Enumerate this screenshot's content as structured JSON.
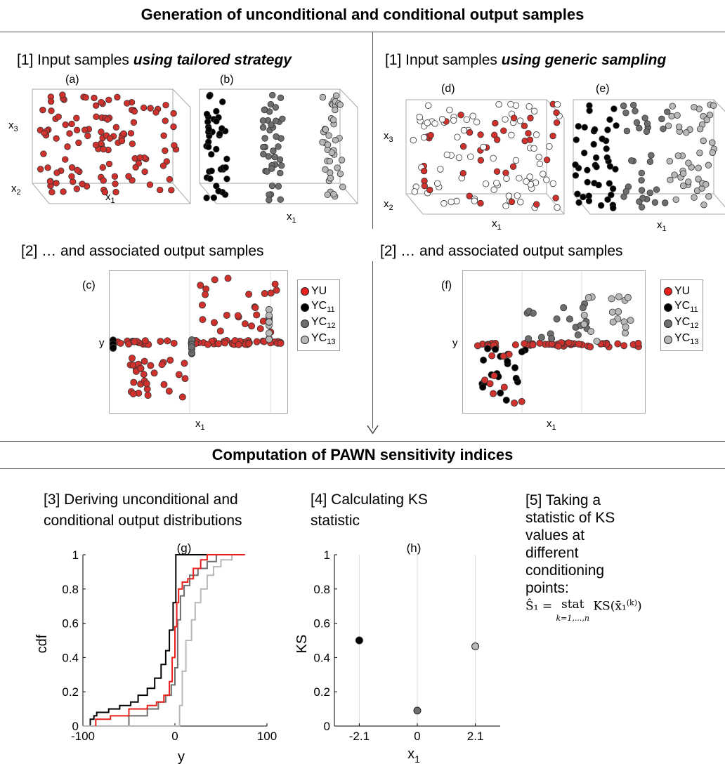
{
  "section1": {
    "title": "Generation of unconditional and conditional output samples"
  },
  "section2": {
    "title": "Computation of PAWN sensitivity indices"
  },
  "left": {
    "step1_prefix": "[1] Input samples ",
    "step1_emph": "using tailored strategy",
    "step2": "[2] … and associated output samples",
    "panel_a": "(a)",
    "panel_b": "(b)",
    "panel_c": "(c)"
  },
  "right": {
    "step1_prefix": "[1] Input samples ",
    "step1_emph": "using generic sampling",
    "step2": "[2] … and associated output samples",
    "panel_d": "(d)",
    "panel_e": "(e)",
    "panel_f": "(f)"
  },
  "axis_glyphs": {
    "x1": "x1",
    "x2": "x2",
    "x3": "x3",
    "y": "y"
  },
  "legend": [
    {
      "label": "YU",
      "color": "#e8201c"
    },
    {
      "label": "YC11",
      "color": "#000000"
    },
    {
      "label": "YC12",
      "color": "#6e6e6e"
    },
    {
      "label": "YC13",
      "color": "#b8b8b8"
    }
  ],
  "step3": {
    "line1": "[3] Deriving unconditional and",
    "line2": "conditional output distributions"
  },
  "step4": {
    "line1": "[4] Calculating KS",
    "line2": "statistic"
  },
  "step5": {
    "lines": [
      "[5] Taking a",
      "statistic of KS",
      "values at",
      "different",
      "conditioning",
      "points:"
    ],
    "formula_lhs": "Ŝ₁ = ",
    "formula_op": "stat",
    "formula_sub": "k=1,...,n",
    "formula_rhs": "KS(x̄₁",
    "formula_sup": "(k)",
    "formula_close": ")"
  },
  "colors": {
    "red": "#d0312d",
    "black": "#000000",
    "dark_gray": "#6e6e6e",
    "light_gray": "#b8b8b8"
  },
  "chart_data": [
    {
      "type": "line",
      "panel": "(g)",
      "xlabel": "y",
      "ylabel": "cdf",
      "xlim": [
        -100,
        100
      ],
      "ylim": [
        0,
        1
      ],
      "xticks": [
        -100,
        0,
        100
      ],
      "yticks": [
        0,
        0.2,
        0.4,
        0.6,
        0.8,
        1
      ],
      "series": [
        {
          "color": "#000000",
          "x": [
            -92,
            -92,
            -88,
            -88,
            -85,
            -85,
            -72,
            -72,
            -60,
            -60,
            -48,
            -48,
            -40,
            -40,
            -30,
            -30,
            -22,
            -22,
            -15,
            -15,
            -10,
            -10,
            -6,
            -6,
            -2,
            -2,
            1,
            1,
            76
          ],
          "y": [
            0,
            0.04,
            0.04,
            0.06,
            0.06,
            0.08,
            0.08,
            0.1,
            0.1,
            0.12,
            0.12,
            0.14,
            0.14,
            0.18,
            0.18,
            0.22,
            0.22,
            0.28,
            0.28,
            0.36,
            0.36,
            0.44,
            0.44,
            0.56,
            0.56,
            0.72,
            0.72,
            1,
            1
          ]
        },
        {
          "color": "#6e6e6e",
          "x": [
            -50,
            -50,
            -30,
            -30,
            -18,
            -18,
            -10,
            -10,
            -4,
            -4,
            0,
            0,
            3,
            3,
            6,
            6,
            10,
            10,
            16,
            16,
            25,
            25,
            35,
            35,
            45,
            45,
            76
          ],
          "y": [
            0,
            0.06,
            0.06,
            0.1,
            0.1,
            0.14,
            0.14,
            0.18,
            0.18,
            0.24,
            0.24,
            0.34,
            0.34,
            0.62,
            0.62,
            0.76,
            0.76,
            0.82,
            0.82,
            0.88,
            0.88,
            0.92,
            0.92,
            0.96,
            0.96,
            1,
            1
          ]
        },
        {
          "color": "#b8b8b8",
          "x": [
            -100,
            5,
            5,
            8,
            8,
            12,
            12,
            18,
            18,
            22,
            22,
            28,
            28,
            35,
            35,
            42,
            42,
            50,
            50,
            62,
            62,
            76
          ],
          "y": [
            0,
            0,
            0.12,
            0.12,
            0.32,
            0.32,
            0.5,
            0.5,
            0.62,
            0.62,
            0.72,
            0.72,
            0.8,
            0.8,
            0.88,
            0.88,
            0.93,
            0.93,
            0.97,
            0.97,
            1,
            1
          ]
        },
        {
          "color": "#e8201c",
          "x": [
            -86,
            -86,
            -70,
            -70,
            -50,
            -50,
            -30,
            -30,
            -20,
            -20,
            -12,
            -12,
            -6,
            -6,
            -3,
            -3,
            0,
            0,
            2,
            2,
            4,
            4,
            8,
            8,
            14,
            14,
            20,
            20,
            28,
            28,
            35,
            35,
            76
          ],
          "y": [
            0,
            0.04,
            0.04,
            0.06,
            0.06,
            0.1,
            0.1,
            0.12,
            0.12,
            0.14,
            0.14,
            0.18,
            0.18,
            0.26,
            0.26,
            0.4,
            0.4,
            0.58,
            0.58,
            0.72,
            0.72,
            0.8,
            0.8,
            0.84,
            0.84,
            0.86,
            0.86,
            0.92,
            0.92,
            0.97,
            0.97,
            1,
            1
          ]
        }
      ]
    },
    {
      "type": "scatter",
      "panel": "(h)",
      "xlabel": "x1",
      "ylabel": "KS",
      "xlim": [
        -3,
        3
      ],
      "ylim": [
        0,
        1
      ],
      "xticks": [
        -2.1,
        0,
        2.1
      ],
      "yticks": [
        0,
        0.2,
        0.4,
        0.6,
        0.8,
        1
      ],
      "points": [
        {
          "x": -2.1,
          "y": 0.5,
          "color": "#000000"
        },
        {
          "x": 0,
          "y": 0.09,
          "color": "#6e6e6e"
        },
        {
          "x": 2.1,
          "y": 0.465,
          "color": "#b8b8b8"
        }
      ]
    }
  ]
}
